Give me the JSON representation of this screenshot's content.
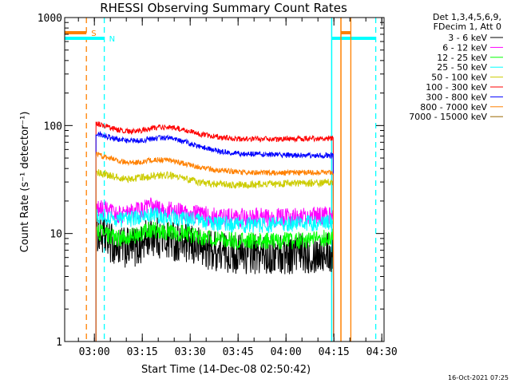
{
  "chart_data": {
    "type": "line",
    "title": "RHESSI Observing Summary Count Rates",
    "xlabel": "Start Time (14-Dec-08 02:50:42)",
    "ylabel": "Count Rate (s⁻¹ detector⁻¹)",
    "yscale": "log",
    "ylim": [
      1,
      1000
    ],
    "xlim_minutes": [
      0,
      100
    ],
    "x_unit": "minutes after 02:50:42",
    "x_ticks": [
      {
        "label": "03:00",
        "minutes": 9.3
      },
      {
        "label": "03:15",
        "minutes": 24.3
      },
      {
        "label": "03:30",
        "minutes": 39.3
      },
      {
        "label": "03:45",
        "minutes": 54.3
      },
      {
        "label": "04:00",
        "minutes": 69.3
      },
      {
        "label": "04:15",
        "minutes": 84.3
      },
      {
        "label": "04:30",
        "minutes": 99.3
      }
    ],
    "y_ticks": [
      {
        "label": "1",
        "value": 1
      },
      {
        "label": "10",
        "value": 10
      },
      {
        "label": "100",
        "value": 100
      },
      {
        "label": "1000",
        "value": 1000
      }
    ],
    "legend_header": [
      "Det 1,3,4,5,6,9,",
      "FDecim 1, Att 0"
    ],
    "series": [
      {
        "name": "3 - 6 keV",
        "color": "#000000",
        "points": [
          [
            9.8,
            10.5
          ],
          [
            12,
            9.5
          ],
          [
            16,
            7.5
          ],
          [
            20,
            7.3
          ],
          [
            24,
            7.8
          ],
          [
            27,
            9.8
          ],
          [
            30,
            9
          ],
          [
            35,
            8.5
          ],
          [
            38,
            8
          ],
          [
            42,
            7.5
          ],
          [
            48,
            6.8
          ],
          [
            55,
            6.5
          ],
          [
            62,
            6.4
          ],
          [
            70,
            6.5
          ],
          [
            80,
            6.7
          ],
          [
            84.2,
            6.7
          ]
        ]
      },
      {
        "name": "6 - 12 keV",
        "color": "#ff00ff",
        "points": [
          [
            9.8,
            17
          ],
          [
            12,
            16.5
          ],
          [
            16,
            15
          ],
          [
            20,
            15.5
          ],
          [
            24,
            16.5
          ],
          [
            27,
            18
          ],
          [
            30,
            16.5
          ],
          [
            35,
            16
          ],
          [
            38,
            15.5
          ],
          [
            42,
            15
          ],
          [
            48,
            14
          ],
          [
            55,
            14
          ],
          [
            62,
            14
          ],
          [
            70,
            14
          ],
          [
            80,
            14.5
          ],
          [
            84.2,
            14.8
          ]
        ]
      },
      {
        "name": "12 - 25 keV",
        "color": "#00ff00",
        "points": [
          [
            9.8,
            10.5
          ],
          [
            12,
            10
          ],
          [
            16,
            9
          ],
          [
            20,
            9.3
          ],
          [
            24,
            10
          ],
          [
            27,
            11
          ],
          [
            30,
            10.6
          ],
          [
            35,
            10.2
          ],
          [
            38,
            10
          ],
          [
            42,
            9.4
          ],
          [
            48,
            8.8
          ],
          [
            55,
            8.6
          ],
          [
            62,
            8.5
          ],
          [
            70,
            8.6
          ],
          [
            80,
            8.8
          ],
          [
            84.2,
            9.5
          ]
        ]
      },
      {
        "name": "25 - 50 keV",
        "color": "#00ffff",
        "points": [
          [
            9.8,
            15
          ],
          [
            12,
            14.5
          ],
          [
            16,
            13.5
          ],
          [
            20,
            13.6
          ],
          [
            24,
            14.2
          ],
          [
            27,
            15
          ],
          [
            30,
            14.5
          ],
          [
            35,
            14
          ],
          [
            38,
            13.6
          ],
          [
            42,
            13
          ],
          [
            48,
            12.2
          ],
          [
            55,
            12
          ],
          [
            62,
            12
          ],
          [
            70,
            12.2
          ],
          [
            80,
            12.6
          ],
          [
            84.2,
            13
          ]
        ]
      },
      {
        "name": "50 - 100 keV",
        "color": "#cccc00",
        "points": [
          [
            9.8,
            37
          ],
          [
            12,
            36
          ],
          [
            16,
            33
          ],
          [
            20,
            32
          ],
          [
            24,
            33
          ],
          [
            28,
            34
          ],
          [
            32,
            35
          ],
          [
            35,
            34
          ],
          [
            38,
            32
          ],
          [
            42,
            30
          ],
          [
            48,
            28.5
          ],
          [
            55,
            28
          ],
          [
            62,
            28.5
          ],
          [
            70,
            29
          ],
          [
            80,
            29.5
          ],
          [
            84.2,
            30
          ]
        ]
      },
      {
        "name": "100 - 300 keV",
        "color": "#ff0000",
        "points": [
          [
            9.8,
            105
          ],
          [
            12,
            100
          ],
          [
            16,
            92
          ],
          [
            20,
            88
          ],
          [
            24,
            90
          ],
          [
            28,
            95
          ],
          [
            32,
            97
          ],
          [
            35,
            95
          ],
          [
            38,
            90
          ],
          [
            42,
            84
          ],
          [
            48,
            78
          ],
          [
            55,
            75
          ],
          [
            62,
            75
          ],
          [
            70,
            75
          ],
          [
            80,
            76
          ],
          [
            84.2,
            76
          ]
        ]
      },
      {
        "name": "300 - 800 keV",
        "color": "#0000ff",
        "points": [
          [
            9.8,
            85
          ],
          [
            12,
            81
          ],
          [
            16,
            75
          ],
          [
            20,
            72
          ],
          [
            24,
            73
          ],
          [
            28,
            76
          ],
          [
            32,
            77
          ],
          [
            35,
            75
          ],
          [
            38,
            70
          ],
          [
            42,
            64
          ],
          [
            48,
            58
          ],
          [
            55,
            55
          ],
          [
            62,
            54
          ],
          [
            70,
            53
          ],
          [
            80,
            53
          ],
          [
            84.2,
            53
          ]
        ]
      },
      {
        "name": "800 - 7000 keV",
        "color": "#ff8000",
        "points": [
          [
            9.8,
            55
          ],
          [
            12,
            52
          ],
          [
            16,
            48
          ],
          [
            20,
            45
          ],
          [
            24,
            46
          ],
          [
            28,
            48
          ],
          [
            32,
            48
          ],
          [
            35,
            46
          ],
          [
            38,
            44
          ],
          [
            42,
            41
          ],
          [
            48,
            38.5
          ],
          [
            55,
            37
          ],
          [
            62,
            36.5
          ],
          [
            70,
            36.5
          ],
          [
            80,
            37
          ],
          [
            84.2,
            37
          ]
        ]
      },
      {
        "name": "7000 - 15000 keV",
        "color": "#996600",
        "points": []
      }
    ],
    "bands": [
      {
        "label": "S",
        "color": "#ff8000",
        "start_minute": 6.8,
        "end_minute": null,
        "style": "dashed"
      },
      {
        "label": "N",
        "color": "#00ffff",
        "start_minute": 12.4,
        "end_minute": null,
        "style": "dashed"
      },
      {
        "label": "",
        "color": "#00ffff",
        "start_minute": 83.6,
        "end_minute": 97.4,
        "style": "solid-dashed"
      },
      {
        "label": "",
        "color": "#ff8000",
        "start_minute": 86.5,
        "end_minute": 89.6,
        "style": "solid"
      }
    ],
    "footer_date": "16-Oct-2021 07:25"
  }
}
